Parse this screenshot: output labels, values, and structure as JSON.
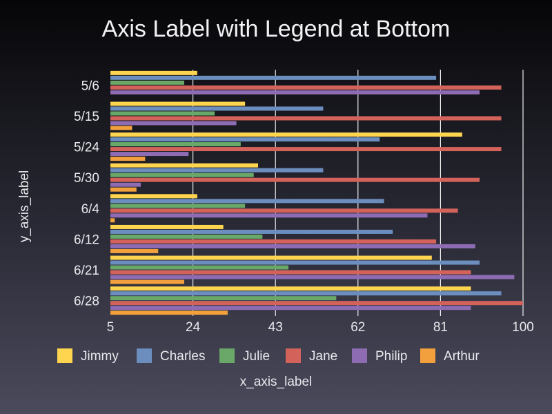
{
  "chart_data": {
    "type": "bar",
    "orientation": "horizontal",
    "title": "Axis Label with Legend at Bottom",
    "xlabel": "x_axis_label",
    "ylabel": "y_axis_label",
    "categories": [
      "5/6",
      "5/15",
      "5/24",
      "5/30",
      "6/4",
      "6/12",
      "6/21",
      "6/28"
    ],
    "xlim": [
      5,
      100
    ],
    "xticks": [
      5,
      24,
      43,
      62,
      81,
      100
    ],
    "grid": "vertical",
    "legend": "bottom",
    "series": [
      {
        "name": "Jimmy",
        "color": "#ffd54f",
        "values": [
          25,
          36,
          86,
          39,
          25,
          31,
          79,
          88
        ]
      },
      {
        "name": "Charles",
        "color": "#6b8ebf",
        "values": [
          80,
          54,
          67,
          54,
          68,
          70,
          90,
          95
        ]
      },
      {
        "name": "Julie",
        "color": "#6aa86a",
        "values": [
          22,
          29,
          35,
          38,
          36,
          40,
          46,
          57
        ]
      },
      {
        "name": "Jane",
        "color": "#d3635a",
        "values": [
          95,
          95,
          95,
          90,
          85,
          80,
          88,
          100
        ]
      },
      {
        "name": "Philip",
        "color": "#8e6cb3",
        "values": [
          90,
          34,
          23,
          12,
          78,
          89,
          98,
          88
        ]
      },
      {
        "name": "Arthur",
        "color": "#f2a03d",
        "values": [
          null,
          10,
          13,
          11,
          6,
          16,
          22,
          32
        ]
      }
    ]
  }
}
